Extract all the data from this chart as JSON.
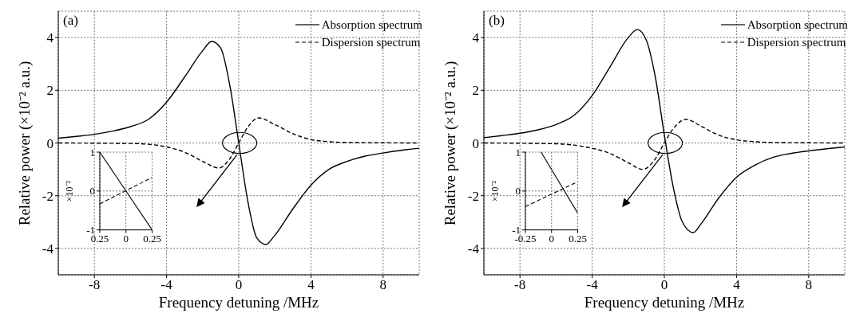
{
  "chart_data": [
    {
      "type": "line",
      "annotations": [
        "(a)"
      ],
      "xlabel": "Frequency detuning /MHz",
      "ylabel": "Relative power (×10⁻² a.u.)",
      "xlim": [
        -10,
        10
      ],
      "xticks": [
        -8,
        -4,
        0,
        4,
        8
      ],
      "ylim": [
        -5,
        5
      ],
      "yticks": [
        -4,
        -2,
        0,
        2,
        4
      ],
      "grid": true,
      "legend": "top right",
      "series": [
        {
          "name": "Absorption spectrum",
          "color": "#000000",
          "line_style": "solid",
          "x": [
            -10,
            -9,
            -8,
            -7,
            -6,
            -5,
            -4,
            -3,
            -2,
            -1.5,
            -1,
            -0.5,
            0,
            0.5,
            1,
            1.5,
            2,
            3,
            4,
            5,
            6,
            7,
            8,
            9,
            10
          ],
          "values": [
            0.18,
            0.25,
            0.33,
            0.45,
            0.62,
            0.9,
            1.55,
            2.5,
            3.5,
            3.85,
            3.6,
            2.2,
            0,
            -2.2,
            -3.6,
            -3.85,
            -3.5,
            -2.5,
            -1.6,
            -1.0,
            -0.7,
            -0.5,
            -0.38,
            -0.28,
            -0.2
          ]
        },
        {
          "name": "Dispersion spectrum",
          "color": "#000000",
          "line_style": "dashed",
          "x": [
            -10,
            -6,
            -5,
            -4,
            -3,
            -2,
            -1.1,
            -0.5,
            0,
            0.5,
            1.1,
            2,
            3,
            4,
            5,
            6,
            10
          ],
          "values": [
            0,
            -0.02,
            -0.05,
            -0.15,
            -0.35,
            -0.7,
            -0.95,
            -0.6,
            0,
            0.6,
            0.95,
            0.7,
            0.35,
            0.13,
            0.05,
            0.02,
            0
          ]
        }
      ]
    },
    {
      "type": "line",
      "ylabel": "×10⁻²",
      "xlim": [
        -0.25,
        0.25
      ],
      "xticks": [
        {
          "value": -0.25,
          "label": "0.25"
        },
        0,
        0.25
      ],
      "ylim": [
        -1,
        1
      ],
      "yticks": [
        -1,
        0,
        1
      ],
      "grid": true,
      "series": [
        {
          "color": "#000000",
          "line_style": "solid",
          "x": [
            -0.25,
            0.25
          ],
          "values": [
            1,
            -1
          ]
        },
        {
          "color": "#000000",
          "line_style": "dashed",
          "x": [
            -0.25,
            0.25
          ],
          "values": [
            -0.33,
            0.35
          ]
        }
      ]
    },
    {
      "type": "line",
      "annotations": [
        "(b)"
      ],
      "xlabel": "Frequency detuning /MHz",
      "ylabel": "Relative power (×10⁻² a.u.)",
      "xlim": [
        -10,
        10
      ],
      "xticks": [
        -8,
        -4,
        0,
        4,
        8
      ],
      "ylim": [
        -5,
        5
      ],
      "yticks": [
        -4,
        -2,
        0,
        2,
        4
      ],
      "grid": true,
      "legend": "top right",
      "series": [
        {
          "name": "Absorption spectrum",
          "color": "#000000",
          "line_style": "solid",
          "x": [
            -10,
            -9,
            -8,
            -7,
            -6,
            -5,
            -4,
            -3,
            -2,
            -1.5,
            -1,
            -0.5,
            0,
            0.5,
            1,
            1.6,
            2,
            3,
            4,
            5,
            6,
            7,
            8,
            9,
            10
          ],
          "values": [
            0.2,
            0.28,
            0.37,
            0.5,
            0.7,
            1.05,
            1.8,
            2.9,
            4.0,
            4.3,
            3.9,
            2.5,
            0.3,
            -1.7,
            -3.0,
            -3.4,
            -3.1,
            -2.1,
            -1.3,
            -0.85,
            -0.55,
            -0.4,
            -0.3,
            -0.22,
            -0.15
          ]
        },
        {
          "name": "Dispersion spectrum",
          "color": "#000000",
          "line_style": "dashed",
          "x": [
            -10,
            -6,
            -5,
            -4,
            -3,
            -2,
            -1.2,
            -0.5,
            0,
            0.5,
            1.2,
            2,
            3,
            4,
            5,
            6,
            10
          ],
          "values": [
            0,
            -0.03,
            -0.08,
            -0.2,
            -0.4,
            -0.75,
            -1.0,
            -0.6,
            0,
            0.55,
            0.9,
            0.65,
            0.3,
            0.12,
            0.05,
            0.02,
            0
          ]
        }
      ]
    },
    {
      "type": "line",
      "ylabel": "×10⁻²",
      "xlim": [
        -0.25,
        0.25
      ],
      "xticks": [
        -0.25,
        0,
        0.25
      ],
      "ylim": [
        -1,
        1
      ],
      "yticks": [
        -1,
        0,
        1
      ],
      "grid": true,
      "series": [
        {
          "color": "#000000",
          "line_style": "solid",
          "x": [
            -0.1,
            0.25
          ],
          "values": [
            1,
            -0.57
          ]
        },
        {
          "color": "#000000",
          "line_style": "dashed",
          "x": [
            -0.25,
            0.25
          ],
          "values": [
            -0.4,
            0.24
          ]
        }
      ]
    }
  ]
}
